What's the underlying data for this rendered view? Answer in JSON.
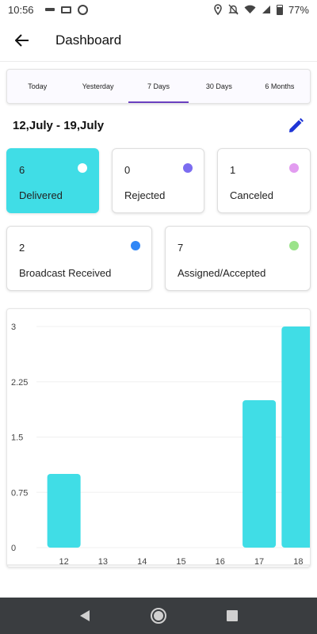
{
  "status_bar": {
    "time": "10:56",
    "battery": "77%"
  },
  "header": {
    "title": "Dashboard",
    "back_icon": "arrow-left-icon"
  },
  "tabs": [
    {
      "label": "Today",
      "active": false
    },
    {
      "label": "Yesterday",
      "active": false
    },
    {
      "label": "7 Days",
      "active": true
    },
    {
      "label": "30 Days",
      "active": false
    },
    {
      "label": "6 Months",
      "active": false
    }
  ],
  "date_range": {
    "text": "12,July - 19,July",
    "edit_icon": "pencil-icon"
  },
  "stats": [
    {
      "count": "6",
      "label": "Delivered",
      "color": "#ffffff"
    },
    {
      "count": "0",
      "label": "Rejected",
      "color": "#7b6cf0"
    },
    {
      "count": "1",
      "label": "Canceled",
      "color": "#e29cf0"
    },
    {
      "count": "2",
      "label": "Broadcast Received",
      "color": "#2f86f6"
    },
    {
      "count": "7",
      "label": "Assigned/Accepted",
      "color": "#9be38a"
    }
  ],
  "colors": {
    "accent": "#6a3fbf",
    "delivered_card": "#40dde6",
    "bar": "#40dde6",
    "edit_icon": "#1f35d6",
    "navbar": "#3a3d40"
  },
  "chart_data": {
    "type": "bar",
    "categories": [
      "12",
      "13",
      "14",
      "15",
      "16",
      "17",
      "18"
    ],
    "values": [
      1,
      0,
      0,
      0,
      0,
      2,
      3
    ],
    "ytick_labels": [
      "0",
      "0.75",
      "1.5",
      "2.25",
      "3"
    ],
    "ylim": [
      0,
      3
    ],
    "grid": true
  },
  "nav": {
    "back_icon": "triangle-back-icon",
    "home_icon": "circle-home-icon",
    "recents_icon": "square-recents-icon"
  }
}
